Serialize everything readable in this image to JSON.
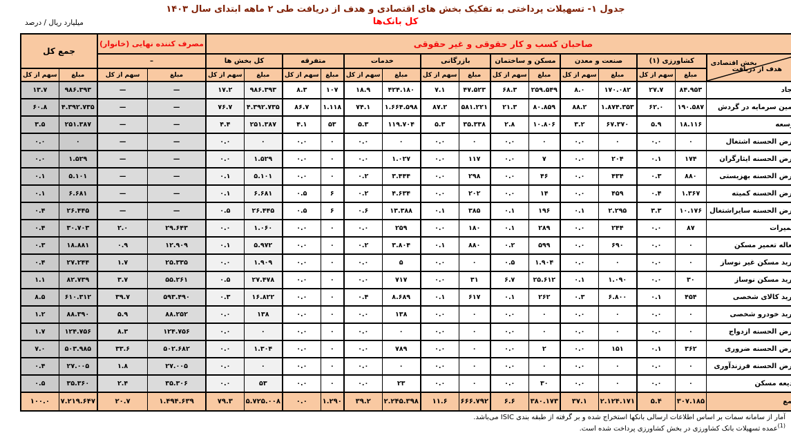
{
  "page": {
    "title": "جدول ۱- تسهیلات پرداختی به تفکیک بخش های اقتصادی و هدف از دریافت طی ۲ ماهه ابتدای سال ۱۴۰۳",
    "subtitle": "کل بانک‌ها",
    "unit_note": "میلیارد ریال / درصد",
    "footnote_source": "آمار از سامانه سمات بر اساس اطلاعات ارسالی بانکها استخراج شده و بر گرفته از طبقه بندی ISIC می‌باشد.",
    "footnote1_marker": "(1)",
    "footnote1_text": "عمده تسهیلات بانک کشاورزی در بخش کشاورزی پرداخت شده است."
  },
  "colors": {
    "header_fill": "#f9c9a2",
    "band_text": "#f20d0d",
    "title_text": "#7e1f04",
    "all_sectors_fill": "#f1f1f1",
    "household_fill": "#dbdbdb",
    "grand_total_fill": "#cbcbcb"
  },
  "table": {
    "top_band": "صاحبان کسب و کار حقوقی و غیر حقوقی",
    "household_band": "مصرف کننده نهایی (خانوار)",
    "household_sub": "–",
    "grand_total_label": "جمع کل",
    "sector_axis_label": "بخش اقتصادی",
    "purpose_axis_label": "هدف از دریافت",
    "amount_label": "مبلغ",
    "share_label": "سهم از کل",
    "groups": [
      "کشاورزی (۱)",
      "صنعت و معدن",
      "مسکن و ساختمان",
      "بازرگانی",
      "خدمات",
      "متفرقه",
      "کل بخش ها"
    ],
    "rows": [
      {
        "label": "ایجاد",
        "cells": [
          "۸۴.۹۵۳",
          "۲۷.۷",
          "۱۷۰.۰۸۲",
          "۸.۰",
          "۲۵۹.۵۴۹",
          "۶۸.۳",
          "۴۷.۵۲۳",
          "۷.۱",
          "۴۲۴.۱۸۰",
          "۱۸.۹",
          "۱۰۷",
          "۸.۳",
          "۹۸۶.۳۹۳",
          "۱۷.۲",
          "—",
          "—",
          "۹۸۶.۳۹۳",
          "۱۳.۷"
        ]
      },
      {
        "label": "تامین سرمایه در گردش",
        "cells": [
          "۱۹۰.۵۸۷",
          "۶۲.۰",
          "۱.۸۷۴.۳۵۳",
          "۸۸.۲",
          "۸۰.۸۵۹",
          "۲۱.۳",
          "۵۸۱.۲۲۱",
          "۸۷.۲",
          "۱.۶۶۴.۵۹۸",
          "۷۴.۱",
          "۱.۱۱۸",
          "۸۶.۷",
          "۴.۳۹۲.۷۳۵",
          "۷۶.۷",
          "—",
          "—",
          "۴.۳۹۲.۷۳۵",
          "۶۰.۸"
        ]
      },
      {
        "label": "توسعه",
        "cells": [
          "۱۸.۱۱۶",
          "۵.۹",
          "۶۷.۳۷۰",
          "۳.۲",
          "۱۰.۸۰۶",
          "۲.۸",
          "۳۵.۳۳۸",
          "۵.۳",
          "۱۱۹.۷۰۴",
          "۵.۳",
          "۵۳",
          "۴.۱",
          "۲۵۱.۳۸۷",
          "۴.۴",
          "—",
          "—",
          "۲۵۱.۳۸۷",
          "۳.۵"
        ]
      },
      {
        "label": "قرض الحسنه اشتغال",
        "cells": [
          "۰",
          "۰.۰",
          "۰",
          "۰.۰",
          "۰",
          "۰.۰",
          "۰",
          "۰.۰",
          "۰",
          "۰.۰",
          "۰",
          "۰.۰",
          "۰",
          "۰.۰",
          "—",
          "—",
          "۰",
          "۰.۰"
        ]
      },
      {
        "label": "قرض الحسنه ایثارگران",
        "cells": [
          "۱۷۴",
          "۰.۱",
          "۲۰۴",
          "۰.۰",
          "۷",
          "۰.۰",
          "۱۱۷",
          "۰.۰",
          "۱.۰۲۷",
          "۰.۰",
          "۰",
          "۰.۰",
          "۱.۵۲۹",
          "۰.۰",
          "—",
          "—",
          "۱.۵۲۹",
          "۰.۰"
        ]
      },
      {
        "label": "قرض الحسنه بهزیستی",
        "cells": [
          "۸۸۰",
          "۰.۳",
          "۴۳۴",
          "۰.۰",
          "۴۶",
          "۰.۰",
          "۲۹۸",
          "۰.۰",
          "۳.۴۴۴",
          "۰.۲",
          "۰",
          "۰.۰",
          "۵.۱۰۱",
          "۰.۱",
          "—",
          "—",
          "۵.۱۰۱",
          "۰.۱"
        ]
      },
      {
        "label": "قرض الحسنه کمیته",
        "cells": [
          "۱.۳۶۷",
          "۰.۴",
          "۴۵۹",
          "۰.۰",
          "۱۴",
          "۰.۰",
          "۲۰۲",
          "۰.۰",
          "۴.۶۳۴",
          "۰.۲",
          "۶",
          "۰.۵",
          "۶.۶۸۱",
          "۰.۱",
          "—",
          "—",
          "۶.۶۸۱",
          "۰.۱"
        ]
      },
      {
        "label": "قرض الحسنه سایراشتغال",
        "cells": [
          "۱۰.۱۷۶",
          "۳.۳",
          "۲.۲۹۵",
          "۰.۱",
          "۱۹۶",
          "۰.۱",
          "۳۸۵",
          "۰.۱",
          "۱۳.۳۸۸",
          "۰.۶",
          "۶",
          "۰.۵",
          "۲۶.۴۴۵",
          "۰.۵",
          "—",
          "—",
          "۲۶.۴۴۵",
          "۰.۴"
        ]
      },
      {
        "label": "تعمیرات",
        "cells": [
          "۸۷",
          "۰.۰",
          "۲۴۴",
          "۰.۰",
          "۲۸۹",
          "۰.۱",
          "۱۸۰",
          "۰.۰",
          "۲۵۹",
          "۰.۰",
          "۰",
          "۰.۰",
          "۱.۰۶۰",
          "۰.۰",
          "۲۹.۶۴۳",
          "۲.۰",
          "۳۰.۷۰۳",
          "۰.۴"
        ]
      },
      {
        "label": "جعاله تعمیر مسکن",
        "cells": [
          "۰",
          "۰.۰",
          "۶۹۰",
          "۰.۰",
          "۵۹۹",
          "۰.۲",
          "۸۸۰",
          "۰.۱",
          "۳.۸۰۴",
          "۰.۲",
          "۰",
          "۰.۰",
          "۵.۹۷۲",
          "۰.۱",
          "۱۲.۹۰۹",
          "۰.۹",
          "۱۸.۸۸۱",
          "۰.۳"
        ]
      },
      {
        "label": "خرید مسکن غیر نوساز",
        "cells": [
          "۰",
          "۰.۰",
          "۰",
          "۰.۰",
          "۱.۹۰۴",
          "۰.۵",
          "۰",
          "۰.۰",
          "۵",
          "۰.۰",
          "۰",
          "۰.۰",
          "۱.۹۰۹",
          "۰.۰",
          "۲۵.۳۳۵",
          "۱.۷",
          "۲۷.۲۴۴",
          "۰.۴"
        ]
      },
      {
        "label": "خرید مسکن نوساز",
        "cells": [
          "۳۰",
          "۰.۰",
          "۱.۰۹۰",
          "۰.۱",
          "۲۵.۶۱۲",
          "۶.۷",
          "۳۱",
          "۰.۰",
          "۷۱۷",
          "۰.۰",
          "۰",
          "۰.۰",
          "۲۷.۴۷۸",
          "۰.۵",
          "۵۵.۲۶۱",
          "۳.۷",
          "۸۲.۷۳۹",
          "۱.۱"
        ]
      },
      {
        "label": "خرید کالای شخصی",
        "cells": [
          "۴۵۴",
          "۰.۱",
          "۶.۸۰۰",
          "۰.۳",
          "۲۶۲",
          "۰.۱",
          "۶۱۷",
          "۰.۱",
          "۸.۶۸۹",
          "۰.۴",
          "۰",
          "۰.۰",
          "۱۶.۸۲۲",
          "۰.۳",
          "۵۹۳.۴۹۰",
          "۳۹.۷",
          "۶۱۰.۳۱۲",
          "۸.۵"
        ]
      },
      {
        "label": "خرید خودرو شخصی",
        "cells": [
          "۰",
          "۰.۰",
          "۰",
          "۰.۰",
          "۰",
          "۰.۰",
          "۰",
          "۰.۰",
          "۱۳۸",
          "۰.۰",
          "۰",
          "۰.۰",
          "۱۳۸",
          "۰.۰",
          "۸۸.۲۵۲",
          "۵.۹",
          "۸۸.۳۹۰",
          "۱.۲"
        ]
      },
      {
        "label": "قرض الحسنه ازدواج",
        "cells": [
          "۰",
          "۰.۰",
          "۰",
          "۰.۰",
          "۰",
          "۰.۰",
          "۰",
          "۰.۰",
          "۰",
          "۰.۰",
          "۰",
          "۰.۰",
          "۰",
          "۰.۰",
          "۱۲۴.۷۵۶",
          "۸.۳",
          "۱۲۴.۷۵۶",
          "۱.۷"
        ]
      },
      {
        "label": "قرض الحسنه ضروری",
        "cells": [
          "۳۶۲",
          "۰.۱",
          "۱۵۱",
          "۰.۰",
          "۲",
          "۰.۰",
          "۰",
          "۰.۰",
          "۷۸۹",
          "۰.۰",
          "۰",
          "۰.۰",
          "۱.۳۰۴",
          "۰.۰",
          "۵۰۲.۶۸۲",
          "۳۳.۶",
          "۵۰۳.۹۸۵",
          "۷.۰"
        ]
      },
      {
        "label": "قرض الحسنه فرزندآوری",
        "cells": [
          "۰",
          "۰.۰",
          "۰",
          "۰.۰",
          "۰",
          "۰.۰",
          "۰",
          "۰.۰",
          "۰",
          "۰.۰",
          "۰",
          "۰.۰",
          "۰",
          "۰.۰",
          "۲۷.۰۰۵",
          "۱.۸",
          "۲۷.۰۰۵",
          "۰.۴"
        ]
      },
      {
        "label": "ودیعه مسکن",
        "cells": [
          "۰",
          "۰.۰",
          "۰",
          "۰.۰",
          "۳۰",
          "۰.۰",
          "۰",
          "۰.۰",
          "۲۳",
          "۰.۰",
          "۰",
          "۰.۰",
          "۵۳",
          "۰.۰",
          "۳۵.۳۰۶",
          "۲.۴",
          "۳۵.۳۶۰",
          "۰.۵"
        ]
      },
      {
        "label": "جمع",
        "cells": [
          "۳۰۷.۱۸۵",
          "۵.۴",
          "۲.۱۲۴.۱۷۱",
          "۳۷.۱",
          "۳۸۰.۱۷۳",
          "۶.۶",
          "۶۶۶.۷۹۲",
          "۱۱.۶",
          "۲.۲۴۵.۳۹۸",
          "۳۹.۲",
          "۱.۲۹۰",
          "۰.۰",
          "۵.۷۲۵.۰۰۸",
          "۷۹.۳",
          "۱.۴۹۴.۶۳۹",
          "۲۰.۷",
          "۷.۲۱۹.۶۴۷",
          "۱۰۰.۰"
        ]
      }
    ]
  }
}
